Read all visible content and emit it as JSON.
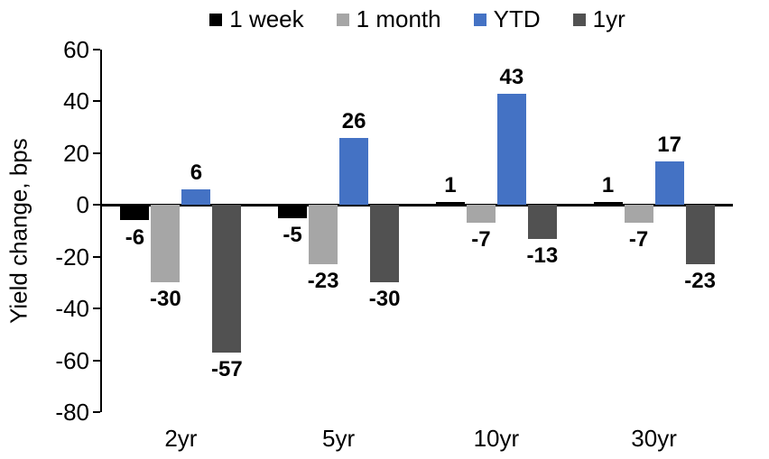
{
  "chart_data": {
    "type": "bar",
    "title": "",
    "ylabel": "Yield change, bps",
    "xlabel": "",
    "categories": [
      "2yr",
      "5yr",
      "10yr",
      "30yr"
    ],
    "series": [
      {
        "name": "1 week",
        "color": "#000000",
        "values": [
          -6,
          -5,
          1,
          1
        ]
      },
      {
        "name": "1 month",
        "color": "#A6A6A6",
        "values": [
          -30,
          -23,
          -7,
          -7
        ]
      },
      {
        "name": "YTD",
        "color": "#4472C4",
        "values": [
          6,
          26,
          43,
          17
        ]
      },
      {
        "name": "1yr",
        "color": "#515151",
        "values": [
          -57,
          -30,
          -13,
          -23
        ]
      }
    ],
    "ylim": [
      -80,
      60
    ],
    "yticks": [
      60,
      40,
      20,
      0,
      -20,
      -40,
      -60,
      -80
    ],
    "legend_position": "top-center",
    "grid": "off",
    "data_labels": "bold-outside-end",
    "background_color": "#ffffff",
    "axis_color": "#000000"
  }
}
